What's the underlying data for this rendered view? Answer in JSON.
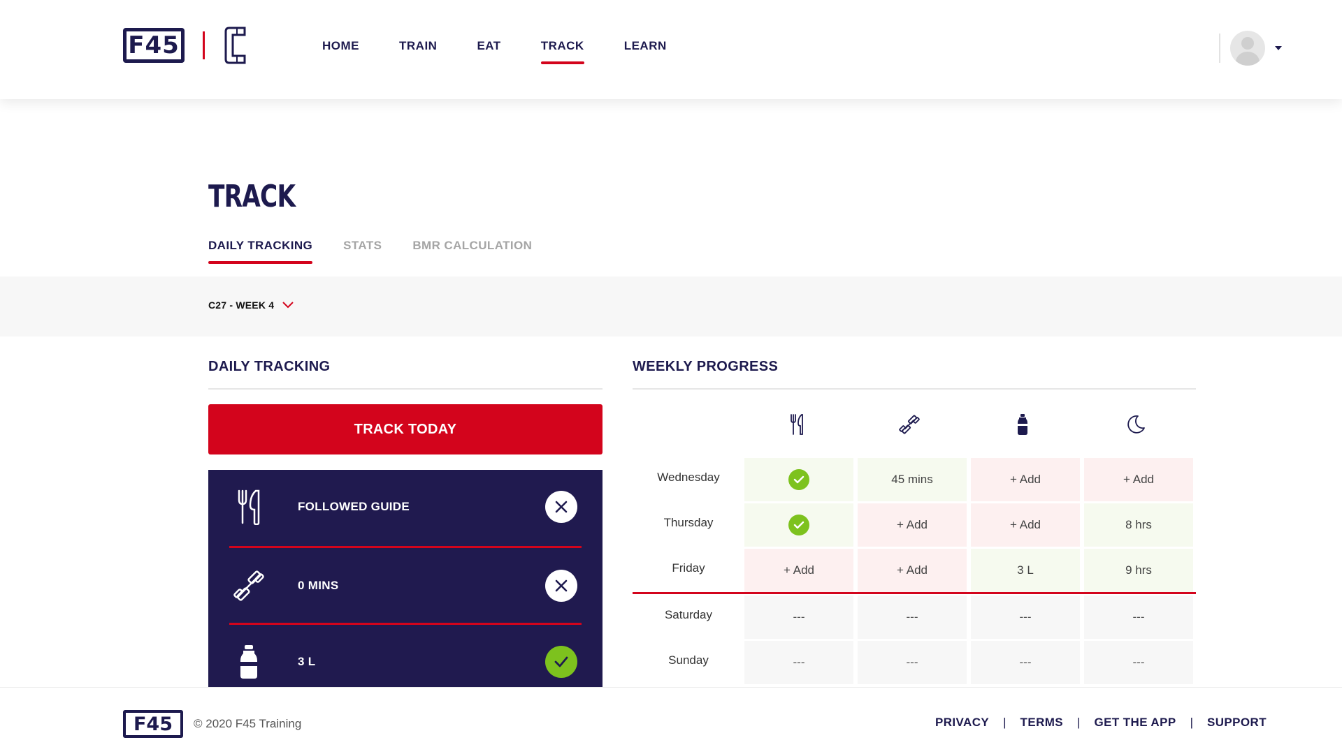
{
  "header": {
    "logo_text": "F45",
    "nav": [
      {
        "label": "HOME",
        "active": false
      },
      {
        "label": "TRAIN",
        "active": false
      },
      {
        "label": "EAT",
        "active": false
      },
      {
        "label": "TRACK",
        "active": true
      },
      {
        "label": "LEARN",
        "active": false
      }
    ]
  },
  "page": {
    "title": "TRACK",
    "tabs": [
      {
        "label": "DAILY TRACKING",
        "active": true
      },
      {
        "label": "STATS",
        "active": false
      },
      {
        "label": "BMR CALCULATION",
        "active": false
      }
    ],
    "week_selector": "C27 - WEEK 4"
  },
  "daily_tracking": {
    "title": "DAILY TRACKING",
    "button_label": "TRACK TODAY",
    "items": [
      {
        "icon": "cutlery-icon",
        "label": "FOLLOWED GUIDE",
        "status": "no"
      },
      {
        "icon": "dumbbell-icon",
        "label": "0 MINS",
        "status": "no"
      },
      {
        "icon": "water-bottle-icon",
        "label": "3 L",
        "status": "yes"
      }
    ]
  },
  "weekly_progress": {
    "title": "WEEKLY PROGRESS",
    "column_icons": [
      "cutlery-icon",
      "dumbbell-icon",
      "water-bottle-icon",
      "moon-icon"
    ],
    "rows": [
      {
        "day": "Wednesday",
        "cells": [
          {
            "value": "",
            "state": "check"
          },
          {
            "value": "45 mins",
            "state": "done"
          },
          {
            "value": "+ Add",
            "state": "todo"
          },
          {
            "value": "+ Add",
            "state": "todo"
          }
        ]
      },
      {
        "day": "Thursday",
        "cells": [
          {
            "value": "",
            "state": "check"
          },
          {
            "value": "+ Add",
            "state": "todo"
          },
          {
            "value": "+ Add",
            "state": "todo"
          },
          {
            "value": "8 hrs",
            "state": "done"
          }
        ]
      },
      {
        "day": "Friday",
        "cells": [
          {
            "value": "+ Add",
            "state": "todo"
          },
          {
            "value": "+ Add",
            "state": "todo"
          },
          {
            "value": "3 L",
            "state": "done"
          },
          {
            "value": "9 hrs",
            "state": "done"
          }
        ]
      },
      {
        "day": "Saturday",
        "cells": [
          {
            "value": "---",
            "state": "future"
          },
          {
            "value": "---",
            "state": "future"
          },
          {
            "value": "---",
            "state": "future"
          },
          {
            "value": "---",
            "state": "future"
          }
        ]
      },
      {
        "day": "Sunday",
        "cells": [
          {
            "value": "---",
            "state": "future"
          },
          {
            "value": "---",
            "state": "future"
          },
          {
            "value": "---",
            "state": "future"
          },
          {
            "value": "---",
            "state": "future"
          }
        ]
      }
    ]
  },
  "footer": {
    "logo_text": "F45",
    "copyright": "© 2020 F45 Training",
    "links": [
      "PRIVACY",
      "TERMS",
      "GET THE APP",
      "SUPPORT"
    ]
  },
  "colors": {
    "brand_navy": "#1d1a4e",
    "brand_red": "#d3041c",
    "success_green": "#7dc21e"
  }
}
